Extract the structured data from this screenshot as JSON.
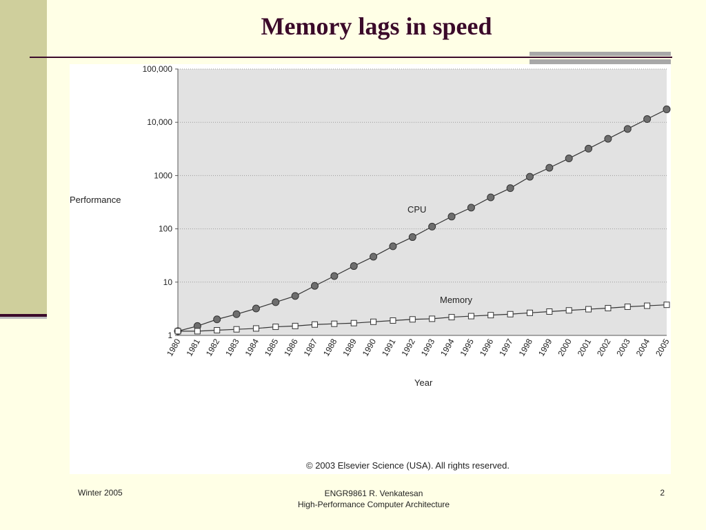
{
  "slide": {
    "title": "Memory lags in speed",
    "footer_left": "Winter 2005",
    "footer_center_line1": "ENGR9861   R. Venkatesan",
    "footer_center_line2": "High-Performance Computer Architecture",
    "page_number": "2"
  },
  "chart_data": {
    "type": "line",
    "title": "",
    "xlabel": "Year",
    "ylabel": "Performance",
    "yscale": "log",
    "ylim": [
      1,
      100000
    ],
    "y_ticks": [
      {
        "value": 1,
        "label": "1"
      },
      {
        "value": 10,
        "label": "10"
      },
      {
        "value": 100,
        "label": "100"
      },
      {
        "value": 1000,
        "label": "1000"
      },
      {
        "value": 10000,
        "label": "10,000"
      },
      {
        "value": 100000,
        "label": "100,000"
      }
    ],
    "x": [
      "1980",
      "1981",
      "1982",
      "1983",
      "1984",
      "1985",
      "1986",
      "1987",
      "1988",
      "1989",
      "1990",
      "1991",
      "1992",
      "1993",
      "1994",
      "1995",
      "1996",
      "1997",
      "1998",
      "1999",
      "2000",
      "2001",
      "2002",
      "2003",
      "2004",
      "2005"
    ],
    "grid": true,
    "series": [
      {
        "name": "CPU",
        "marker": "circle",
        "color": "#6E6E6E",
        "values": [
          1.2,
          1.5,
          2.0,
          2.5,
          3.2,
          4.2,
          5.5,
          8.5,
          13,
          20,
          30,
          47,
          70,
          110,
          170,
          250,
          390,
          580,
          950,
          1400,
          2100,
          3200,
          4900,
          7500,
          11500,
          17500
        ]
      },
      {
        "name": "Memory",
        "marker": "square",
        "color": "#FFFFFF",
        "values": [
          1.2,
          1.2,
          1.25,
          1.3,
          1.35,
          1.45,
          1.5,
          1.6,
          1.65,
          1.7,
          1.8,
          1.9,
          2.0,
          2.05,
          2.2,
          2.3,
          2.4,
          2.5,
          2.65,
          2.8,
          2.95,
          3.1,
          3.25,
          3.45,
          3.6,
          3.75
        ]
      }
    ],
    "copyright": "© 2003 Elsevier Science (USA). All rights reserved."
  }
}
